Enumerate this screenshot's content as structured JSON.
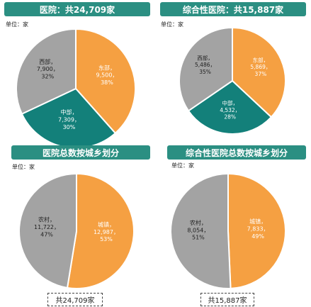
{
  "colors": {
    "header": "#2b8f82",
    "orange": "#f5a042",
    "teal": "#13807a",
    "gray": "#a3a3a3",
    "label_dark": "#1f1f1f",
    "label_light": "#ffffff"
  },
  "charts": [
    {
      "id": "hospital-region",
      "title": "医院：共24,709家",
      "unit": "单位：家",
      "total_label": "",
      "slices": [
        {
          "name": "东部",
          "value": "9,500",
          "percent": "38%",
          "v": 9500,
          "color": "orange",
          "text_color": "label_light"
        },
        {
          "name": "中部",
          "value": "7,309",
          "percent": "30%",
          "v": 7309,
          "color": "teal",
          "text_color": "label_light"
        },
        {
          "name": "西部",
          "value": "7,900",
          "percent": "32%",
          "v": 7900,
          "color": "gray",
          "text_color": "label_dark"
        }
      ]
    },
    {
      "id": "general-hospital-region",
      "title": "综合性医院：共15,887家",
      "unit": "单位：家",
      "total_label": "",
      "slices": [
        {
          "name": "东部",
          "value": "5,869",
          "percent": "37%",
          "v": 5869,
          "color": "orange",
          "text_color": "label_light"
        },
        {
          "name": "中部",
          "value": "4,532",
          "percent": "28%",
          "v": 4532,
          "color": "teal",
          "text_color": "label_light"
        },
        {
          "name": "西部",
          "value": "5,486",
          "percent": "35%",
          "v": 5486,
          "color": "gray",
          "text_color": "label_dark"
        }
      ]
    },
    {
      "id": "hospital-urban-rural",
      "title": "医院总数按城乡划分",
      "unit": "单位：家",
      "total_label": "共24,709家",
      "slices": [
        {
          "name": "城镇",
          "value": "12,987",
          "percent": "53%",
          "v": 12987,
          "color": "orange",
          "text_color": "label_light"
        },
        {
          "name": "农村",
          "value": "11,722",
          "percent": "47%",
          "v": 11722,
          "color": "gray",
          "text_color": "label_dark"
        }
      ]
    },
    {
      "id": "general-hospital-urban-rural",
      "title": "综合性医院总数按城乡划分",
      "unit": "单位：家",
      "total_label": "共15,887家",
      "slices": [
        {
          "name": "城镇",
          "value": "7,833",
          "percent": "49%",
          "v": 7833,
          "color": "orange",
          "text_color": "label_light"
        },
        {
          "name": "农村",
          "value": "8,054",
          "percent": "51%",
          "v": 8054,
          "color": "gray",
          "text_color": "label_dark"
        }
      ]
    }
  ],
  "chart_data": [
    {
      "type": "pie",
      "title": "医院：共24,709家",
      "unit": "单位：家",
      "categories": [
        "东部",
        "中部",
        "西部"
      ],
      "values": [
        9500,
        7309,
        7900
      ],
      "percents": [
        38,
        30,
        32
      ]
    },
    {
      "type": "pie",
      "title": "综合性医院：共15,887家",
      "unit": "单位：家",
      "categories": [
        "东部",
        "中部",
        "西部"
      ],
      "values": [
        5869,
        4532,
        5486
      ],
      "percents": [
        37,
        28,
        35
      ]
    },
    {
      "type": "pie",
      "title": "医院总数按城乡划分",
      "unit": "单位：家",
      "categories": [
        "城镇",
        "农村"
      ],
      "values": [
        12987,
        11722
      ],
      "percents": [
        53,
        47
      ],
      "total": "共24,709家"
    },
    {
      "type": "pie",
      "title": "综合性医院总数按城乡划分",
      "unit": "单位：家",
      "categories": [
        "城镇",
        "农村"
      ],
      "values": [
        7833,
        8054
      ],
      "percents": [
        49,
        51
      ],
      "total": "共15,887家"
    }
  ]
}
